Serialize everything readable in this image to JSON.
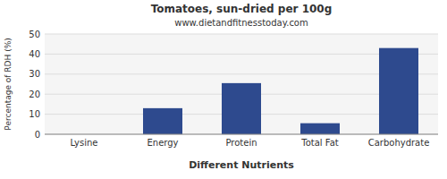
{
  "chart_data": {
    "type": "bar",
    "title": "Tomatoes, sun-dried per 100g",
    "subtitle": "www.dietandfitnesstoday.com",
    "xlabel": "Different Nutrients",
    "ylabel": "Percentage of RDH (%)",
    "categories": [
      "Lysine",
      "Energy",
      "Protein",
      "Total Fat",
      "Carbohydrate"
    ],
    "values": [
      0,
      13,
      25.5,
      5.5,
      43
    ],
    "color": "#2e4a8e",
    "ylim": [
      0,
      50
    ],
    "yticks": [
      0,
      10,
      20,
      30,
      40,
      50
    ],
    "grid": true
  }
}
